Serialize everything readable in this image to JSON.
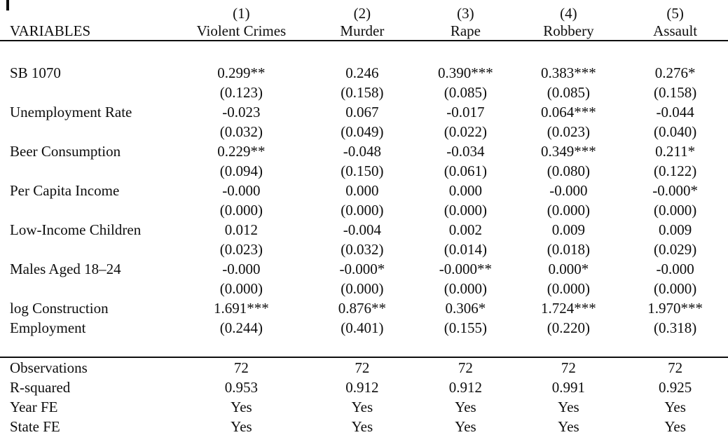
{
  "colors": {
    "text": "#0e0e0e",
    "background": "#ffffff",
    "rule": "#0e0e0e"
  },
  "table": {
    "header": {
      "label": "VARIABLES",
      "numbers": [
        "(1)",
        "(2)",
        "(3)",
        "(4)",
        "(5)"
      ],
      "names": [
        "Violent Crimes",
        "Murder",
        "Rape",
        "Robbery",
        "Assault"
      ]
    },
    "rows": [
      {
        "label": "SB 1070",
        "label2": "",
        "coefs": [
          "0.299**",
          "0.246",
          "0.390***",
          "0.383***",
          "0.276*"
        ],
        "ses": [
          "(0.123)",
          "(0.158)",
          "(0.085)",
          "(0.085)",
          "(0.158)"
        ]
      },
      {
        "label": "Unemployment Rate",
        "label2": "",
        "coefs": [
          "-0.023",
          "0.067",
          "-0.017",
          "0.064***",
          "-0.044"
        ],
        "ses": [
          "(0.032)",
          "(0.049)",
          "(0.022)",
          "(0.023)",
          "(0.040)"
        ]
      },
      {
        "label": "Beer Consumption",
        "label2": "",
        "coefs": [
          "0.229**",
          "-0.048",
          "-0.034",
          "0.349***",
          "0.211*"
        ],
        "ses": [
          "(0.094)",
          "(0.150)",
          "(0.061)",
          "(0.080)",
          "(0.122)"
        ]
      },
      {
        "label": "Per Capita Income",
        "label2": "",
        "coefs": [
          "-0.000",
          "0.000",
          "0.000",
          "-0.000",
          "-0.000*"
        ],
        "ses": [
          "(0.000)",
          "(0.000)",
          "(0.000)",
          "(0.000)",
          "(0.000)"
        ]
      },
      {
        "label": "Low-Income Children",
        "label2": "",
        "coefs": [
          "0.012",
          "-0.004",
          "0.002",
          "0.009",
          "0.009"
        ],
        "ses": [
          "(0.023)",
          "(0.032)",
          "(0.014)",
          "(0.018)",
          "(0.029)"
        ]
      },
      {
        "label": "Males Aged 18–24",
        "label2": "",
        "coefs": [
          "-0.000",
          "-0.000*",
          "-0.000**",
          "0.000*",
          "-0.000"
        ],
        "ses": [
          "(0.000)",
          "(0.000)",
          "(0.000)",
          "(0.000)",
          "(0.000)"
        ]
      },
      {
        "label": "log Construction",
        "label2": "Employment",
        "coefs": [
          "1.691***",
          "0.876**",
          "0.306*",
          "1.724***",
          "1.970***"
        ],
        "ses": [
          "(0.244)",
          "(0.401)",
          "(0.155)",
          "(0.220)",
          "(0.318)"
        ]
      }
    ],
    "stats": [
      {
        "label": "Observations",
        "values": [
          "72",
          "72",
          "72",
          "72",
          "72"
        ]
      },
      {
        "label": "R-squared",
        "values": [
          "0.953",
          "0.912",
          "0.912",
          "0.991",
          "0.925"
        ]
      },
      {
        "label": "Year FE",
        "values": [
          "Yes",
          "Yes",
          "Yes",
          "Yes",
          "Yes"
        ]
      },
      {
        "label": "State FE",
        "values": [
          "Yes",
          "Yes",
          "Yes",
          "Yes",
          "Yes"
        ]
      }
    ]
  }
}
